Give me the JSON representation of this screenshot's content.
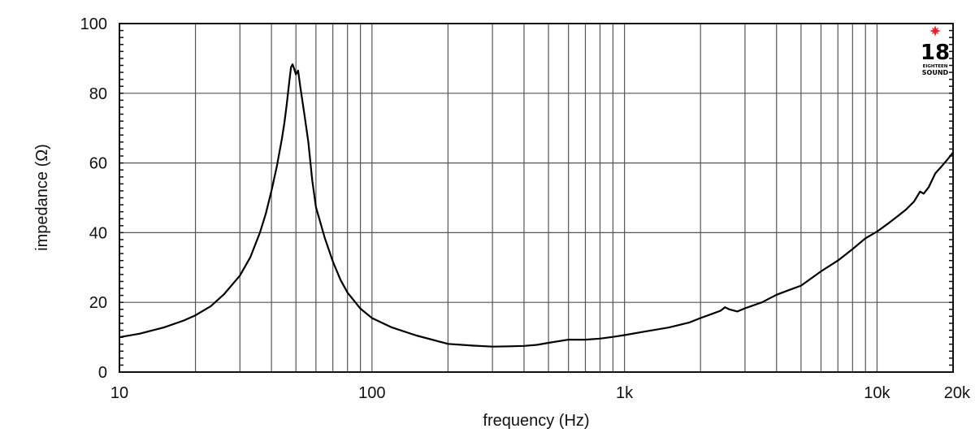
{
  "chart_data": {
    "type": "line",
    "title": "",
    "xlabel": "frequency (Hz)",
    "ylabel": "impedance (Ω)",
    "xscale": "log",
    "xlim": [
      10,
      20000
    ],
    "ylim": [
      0,
      100
    ],
    "grid": true,
    "legend": null,
    "x_tick_labels": [
      {
        "value": 10,
        "label": "10"
      },
      {
        "value": 100,
        "label": "100"
      },
      {
        "value": 1000,
        "label": "1k"
      },
      {
        "value": 10000,
        "label": "10k"
      },
      {
        "value": 20000,
        "label": "20k"
      }
    ],
    "y_tick_labels": [
      {
        "value": 0,
        "label": "0"
      },
      {
        "value": 20,
        "label": "20"
      },
      {
        "value": 40,
        "label": "40"
      },
      {
        "value": 60,
        "label": "60"
      },
      {
        "value": 80,
        "label": "80"
      },
      {
        "value": 100,
        "label": "100"
      }
    ],
    "x_grid_lines": [
      20,
      30,
      40,
      50,
      60,
      70,
      80,
      90,
      100,
      200,
      300,
      400,
      500,
      600,
      700,
      800,
      900,
      1000,
      2000,
      3000,
      4000,
      5000,
      6000,
      7000,
      8000,
      9000,
      10000
    ],
    "y_grid_lines": [
      20,
      40,
      60,
      80
    ],
    "y_minor_tick_step": 2,
    "series": [
      {
        "name": "impedance",
        "color": "#000000",
        "x": [
          10,
          12,
          15,
          18,
          20,
          23,
          26,
          30,
          33,
          36,
          38,
          40,
          42,
          44,
          45,
          46,
          47,
          47.8,
          48.5,
          49.2,
          50,
          51,
          52,
          54,
          56,
          58,
          60,
          65,
          70,
          75,
          80,
          90,
          100,
          120,
          150,
          200,
          250,
          300,
          350,
          400,
          450,
          500,
          600,
          700,
          800,
          900,
          1000,
          1200,
          1500,
          1800,
          2000,
          2200,
          2400,
          2500,
          2600,
          2800,
          3000,
          3500,
          4000,
          4500,
          5000,
          6000,
          7000,
          8000,
          9000,
          10000,
          11000,
          12000,
          13000,
          14000,
          14800,
          15300,
          16000,
          17000,
          18000,
          19000,
          20000
        ],
        "values": [
          10.0,
          11.0,
          12.8,
          14.8,
          16.3,
          18.9,
          22.4,
          27.7,
          33.0,
          40.0,
          45.5,
          52.0,
          59.0,
          67.0,
          71.5,
          77.0,
          83.0,
          87.5,
          88.3,
          87.0,
          85.4,
          86.5,
          82.0,
          74.0,
          66.0,
          55.0,
          47.3,
          38.5,
          31.7,
          26.5,
          22.8,
          18.2,
          15.5,
          12.8,
          10.5,
          8.1,
          7.6,
          7.3,
          7.4,
          7.5,
          7.8,
          8.4,
          9.3,
          9.3,
          9.6,
          10.1,
          10.6,
          11.6,
          12.8,
          14.2,
          15.5,
          16.6,
          17.6,
          18.6,
          18.0,
          17.4,
          18.3,
          20.0,
          22.2,
          23.6,
          24.8,
          28.9,
          32.0,
          35.3,
          38.4,
          40.3,
          42.5,
          44.6,
          46.6,
          48.9,
          51.8,
          51.2,
          53.0,
          57.0,
          59.0,
          61.0,
          63.0
        ]
      }
    ]
  },
  "logo": {
    "number": "18",
    "line1": "EIGHTEEN",
    "line2": "SOUND",
    "star_color": "#e8202a"
  }
}
